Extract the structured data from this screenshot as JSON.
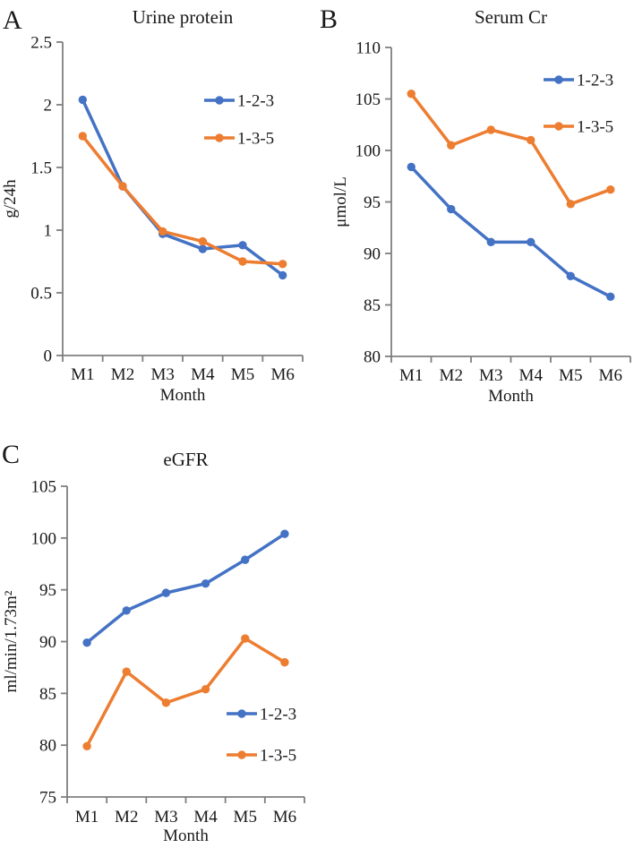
{
  "figure": {
    "kind": "three-panel-line-figure",
    "background": "#ffffff",
    "axis_color": "#7f7f7f",
    "text_color": "#1a1a1a",
    "series_colors": {
      "blue": "#4472C4",
      "orange": "#ED7D31"
    }
  },
  "chart_data": [
    {
      "type": "line",
      "panel_label": "A",
      "title": "Urine protein",
      "xlabel": "Month",
      "ylabel": "g/24h",
      "categories": [
        "M1",
        "M2",
        "M3",
        "M4",
        "M5",
        "M6"
      ],
      "ylim": [
        0,
        2.5
      ],
      "ytick_step": 0.5,
      "grid": false,
      "legend_position": "upper-right",
      "series": [
        {
          "name": "1-2-3",
          "color": "#4472C4",
          "values": [
            2.04,
            1.35,
            0.97,
            0.85,
            0.88,
            0.64
          ]
        },
        {
          "name": "1-3-5",
          "color": "#ED7D31",
          "values": [
            1.75,
            1.35,
            0.99,
            0.91,
            0.75,
            0.73
          ]
        }
      ]
    },
    {
      "type": "line",
      "panel_label": "B",
      "title": "Serum Cr",
      "xlabel": "Month",
      "ylabel": "μmol/L",
      "categories": [
        "M1",
        "M2",
        "M3",
        "M4",
        "M5",
        "M6"
      ],
      "ylim": [
        80,
        110
      ],
      "ytick_step": 5,
      "grid": false,
      "legend_position": "upper-right",
      "series": [
        {
          "name": "1-2-3",
          "color": "#4472C4",
          "values": [
            98.4,
            94.3,
            91.1,
            91.1,
            87.8,
            85.8
          ]
        },
        {
          "name": "1-3-5",
          "color": "#ED7D31",
          "values": [
            105.5,
            100.5,
            102,
            101,
            94.8,
            96.2
          ]
        }
      ]
    },
    {
      "type": "line",
      "panel_label": "C",
      "title": "eGFR",
      "xlabel": "Month",
      "ylabel": "ml/min/1.73m²",
      "categories": [
        "M1",
        "M2",
        "M3",
        "M4",
        "M5",
        "M6"
      ],
      "ylim": [
        75,
        105
      ],
      "ytick_step": 5,
      "grid": false,
      "legend_position": "lower-right",
      "series": [
        {
          "name": "1-2-3",
          "color": "#4472C4",
          "values": [
            89.9,
            93,
            94.7,
            95.6,
            97.9,
            100.4
          ]
        },
        {
          "name": "1-3-5",
          "color": "#ED7D31",
          "values": [
            79.9,
            87.1,
            84.1,
            85.4,
            90.3,
            88
          ]
        }
      ]
    }
  ]
}
